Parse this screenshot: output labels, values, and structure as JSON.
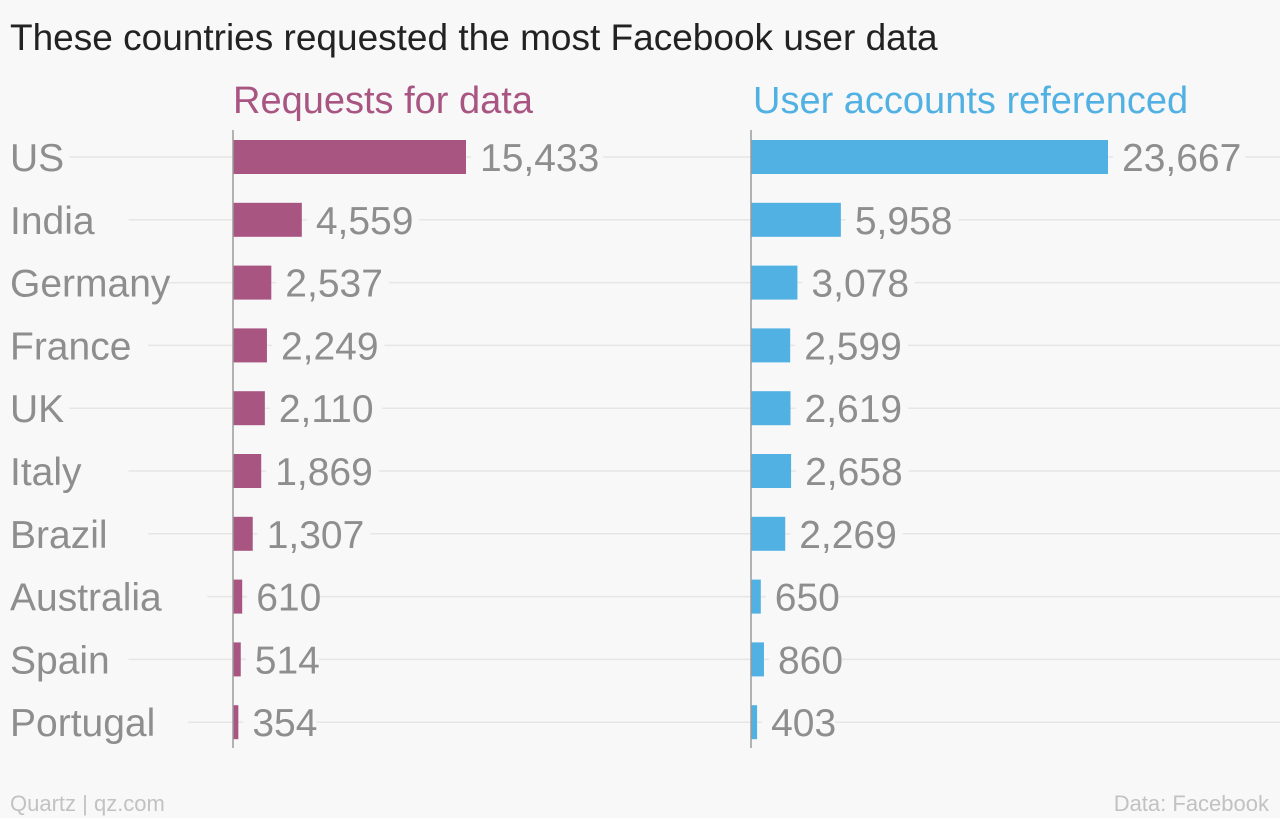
{
  "chart_data": {
    "type": "bar",
    "title": "These countries requested the most Facebook user data",
    "categories": [
      "US",
      "India",
      "Germany",
      "France",
      "UK",
      "Italy",
      "Brazil",
      "Australia",
      "Spain",
      "Portugal"
    ],
    "series": [
      {
        "name": "Requests for data",
        "color": "#a85582",
        "values": [
          15433,
          4559,
          2537,
          2249,
          2110,
          1869,
          1307,
          610,
          514,
          354
        ],
        "labels": [
          "15,433",
          "4,559",
          "2,537",
          "2,249",
          "2,110",
          "1,869",
          "1,307",
          "610",
          "514",
          "354"
        ]
      },
      {
        "name": "User accounts referenced",
        "color": "#52b1e3",
        "values": [
          23667,
          5958,
          3078,
          2599,
          2619,
          2658,
          2269,
          650,
          860,
          403
        ],
        "labels": [
          "23,667",
          "5,958",
          "3,078",
          "2,599",
          "2,619",
          "2,658",
          "2,269",
          "650",
          "860",
          "403"
        ]
      }
    ],
    "grid": true,
    "legend": "panel titles above each column"
  },
  "footer": {
    "left": "Quartz | qz.com",
    "right": "Data: Facebook"
  }
}
